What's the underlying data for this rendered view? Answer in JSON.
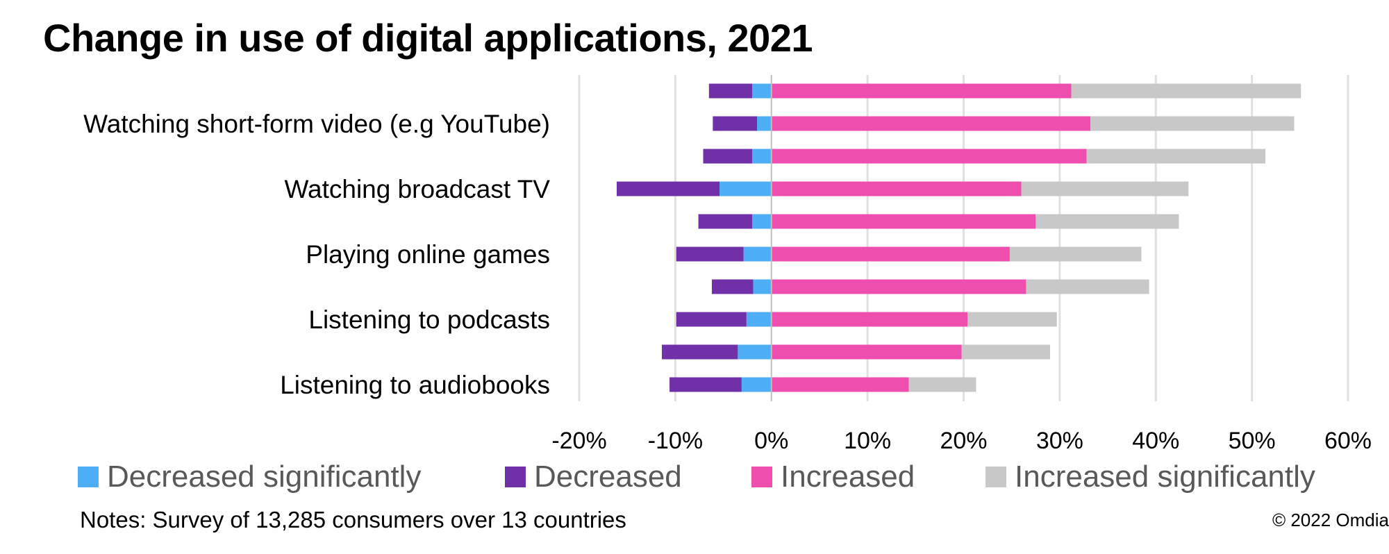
{
  "title": "Change in use of digital applications, 2021",
  "notes": "Notes: Survey of 13,285 consumers over 13 countries",
  "copyright": "© 2022 Omdia",
  "colors": {
    "decreased_significantly": "#4DAEF5",
    "decreased": "#7030A8",
    "increased": "#EE4FAE",
    "increased_significantly": "#C8C8C8",
    "gridline": "#E0E0E0",
    "zero_line": "#BFBFBF"
  },
  "legend": {
    "items": [
      {
        "label": "Decreased significantly",
        "color": "#4DAEF5"
      },
      {
        "label": "Decreased",
        "color": "#7030A8"
      },
      {
        "label": "Increased",
        "color": "#EE4FAE"
      },
      {
        "label": "Increased significantly",
        "color": "#C8C8C8"
      }
    ]
  },
  "chart_data": {
    "type": "bar",
    "orientation": "horizontal",
    "stacked": true,
    "diverging": true,
    "title": "Change in use of digital applications, 2021",
    "categories": [
      "",
      "Watching short-form video (e.g YouTube)",
      "",
      "Watching broadcast TV",
      "",
      "Playing online games",
      "",
      "Listening to podcasts",
      "",
      "Listening to audiobooks"
    ],
    "series": [
      {
        "name": "Decreased significantly",
        "color": "#4DAEF5",
        "values": [
          -2.0,
          -1.5,
          -2.0,
          -5.4,
          -2.0,
          -2.9,
          -1.9,
          -2.6,
          -3.5,
          -3.1
        ]
      },
      {
        "name": "Decreased",
        "color": "#7030A8",
        "values": [
          -4.5,
          -4.6,
          -5.1,
          -10.7,
          -5.6,
          -7.0,
          -4.3,
          -7.3,
          -7.9,
          -7.5
        ]
      },
      {
        "name": "Increased",
        "color": "#EE4FAE",
        "values": [
          31.2,
          33.2,
          32.8,
          26.0,
          27.5,
          24.8,
          26.5,
          20.4,
          19.8,
          14.3
        ]
      },
      {
        "name": "Increased significantly",
        "color": "#C8C8C8",
        "values": [
          23.9,
          21.2,
          18.6,
          17.4,
          14.9,
          13.7,
          12.8,
          9.3,
          9.2,
          7.0
        ]
      }
    ],
    "xlim": [
      -20,
      60
    ],
    "xticks": [
      "-20%",
      "-10%",
      "0%",
      "10%",
      "20%",
      "30%",
      "40%",
      "50%",
      "60%"
    ],
    "xlabel": "",
    "ylabel": "",
    "grid": true,
    "legend_position": "bottom"
  }
}
